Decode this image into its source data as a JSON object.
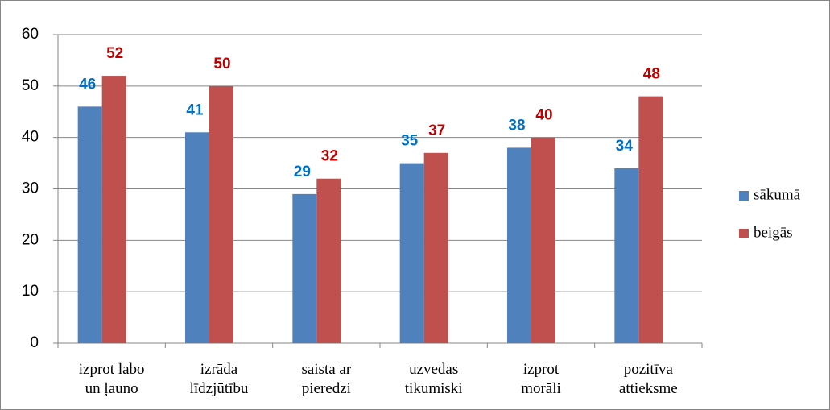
{
  "chart_data": {
    "type": "bar",
    "categories": [
      "izprot labo\nun ļauno",
      "izrāda\nlīdzjūtību",
      "saista ar\npieredzi",
      "uzvedas\ntikumiski",
      "izprot\nmorāli",
      "pozitīva\nattieksme"
    ],
    "series": [
      {
        "name": "sākumā",
        "color": "#4f81bd",
        "label_color": "#0070c0",
        "values": [
          46,
          41,
          29,
          35,
          38,
          34
        ]
      },
      {
        "name": "beigās",
        "color": "#c0504d",
        "label_color": "#c00000",
        "values": [
          52,
          50,
          32,
          37,
          40,
          48
        ]
      }
    ],
    "ylim": [
      0,
      60
    ],
    "yticks": [
      0,
      10,
      20,
      30,
      40,
      50,
      60
    ],
    "grid": true,
    "legend": "right"
  }
}
